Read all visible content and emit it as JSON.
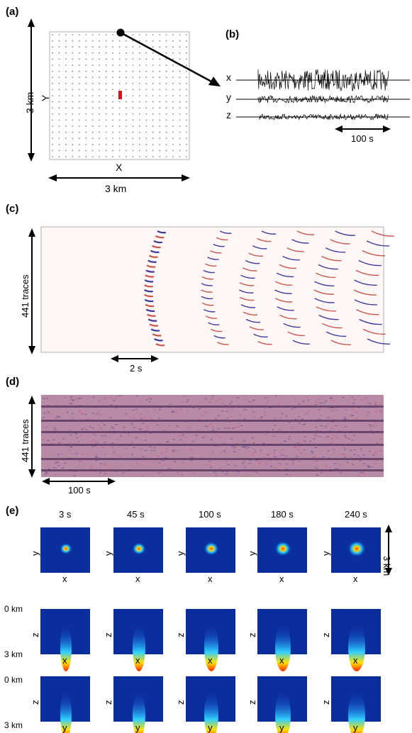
{
  "panels": {
    "a": {
      "letter": "(a)",
      "x_axis_label": "X",
      "y_axis_label": "Y",
      "width_label": "3 km",
      "height_label": "3 km",
      "grid": true
    },
    "b": {
      "letter": "(b)",
      "components": [
        "x",
        "y",
        "z"
      ],
      "scale_label": "100 s"
    },
    "c": {
      "letter": "(c)",
      "trace_label": "441 traces",
      "scale_label": "2 s"
    },
    "d": {
      "letter": "(d)",
      "trace_label": "441 traces",
      "scale_label": "100 s"
    },
    "e": {
      "letter": "(e)",
      "times": [
        "3 s",
        "45 s",
        "100 s",
        "180 s",
        "240 s"
      ],
      "size_label": "3 km",
      "depth_top": "0 km",
      "depth_bottom": "3 km",
      "rows": [
        {
          "vertical_axis": "y",
          "horizontal_axis": "x"
        },
        {
          "vertical_axis": "z",
          "horizontal_axis": "x"
        },
        {
          "vertical_axis": "z",
          "horizontal_axis": "y"
        }
      ]
    }
  },
  "colors": {
    "source_marker": "#e0101a",
    "wiggle_blue": "#1a1a8c",
    "wiggle_red": "#c0392b",
    "image_background": "#0b2e9e",
    "image_hot": "#ff2a00"
  }
}
